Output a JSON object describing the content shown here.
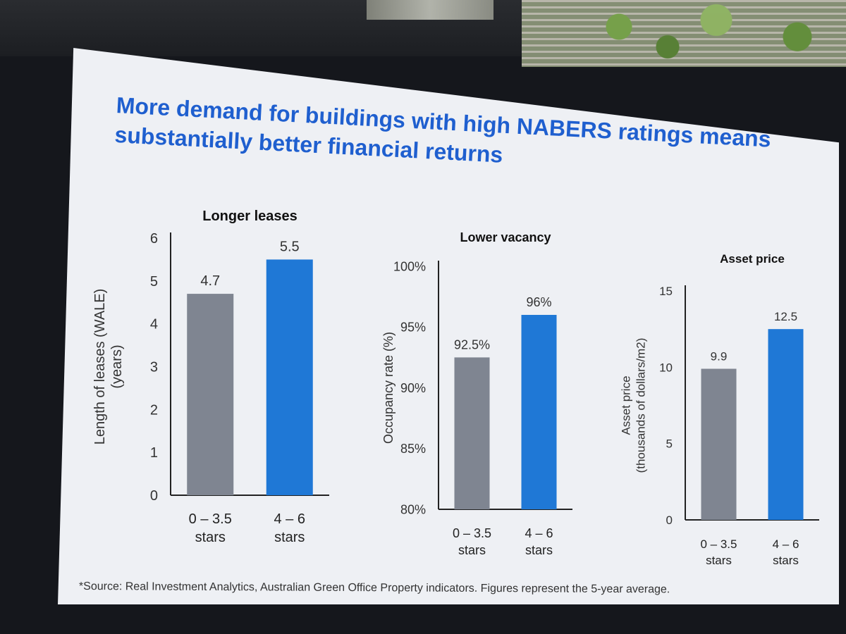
{
  "slide": {
    "title": "More demand for buildings with high NABERS ratings means substantially better financial returns",
    "footnote": "*Source: Real Investment Analytics, Australian Green Office Property indicators. Figures represent the 5-year average."
  },
  "colors": {
    "title": "#1f5fcf",
    "bar_low": "#7f8591",
    "bar_high": "#1f78d6",
    "slide_bg": "#eef0f4"
  },
  "chart_data": [
    {
      "type": "bar",
      "title": "Longer leases",
      "ylabel": [
        "Length of leases (WALE)",
        "(years)"
      ],
      "categories": [
        [
          "0 – 3.5",
          "stars"
        ],
        [
          "4 – 6",
          "stars"
        ]
      ],
      "values": [
        4.7,
        5.5
      ],
      "value_labels": [
        "4.7",
        "5.5"
      ],
      "ylim": [
        0,
        6
      ],
      "yticks": [
        0,
        1,
        2,
        3,
        4,
        5,
        6
      ],
      "ytick_labels": [
        "0",
        "1",
        "2",
        "3",
        "4",
        "5",
        "6"
      ]
    },
    {
      "type": "bar",
      "title": "Lower vacancy",
      "ylabel": [
        "Occupancy rate (%)"
      ],
      "categories": [
        [
          "0 – 3.5",
          "stars"
        ],
        [
          "4 – 6",
          "stars"
        ]
      ],
      "values": [
        92.5,
        96
      ],
      "value_labels": [
        "92.5%",
        "96%"
      ],
      "ylim": [
        80,
        100
      ],
      "yticks": [
        80,
        85,
        90,
        95,
        100
      ],
      "ytick_labels": [
        "80%",
        "85%",
        "90%",
        "95%",
        "100%"
      ]
    },
    {
      "type": "bar",
      "title": "Asset price",
      "ylabel": [
        "Asset price",
        "(thousands of dollars/m2)"
      ],
      "categories": [
        [
          "0 – 3.5",
          "stars"
        ],
        [
          "4 – 6",
          "stars"
        ]
      ],
      "values": [
        9.9,
        12.5
      ],
      "value_labels": [
        "9.9",
        "12.5"
      ],
      "ylim": [
        0,
        15
      ],
      "yticks": [
        0,
        5,
        10,
        15
      ],
      "ytick_labels": [
        "0",
        "5",
        "10",
        "15"
      ]
    }
  ]
}
